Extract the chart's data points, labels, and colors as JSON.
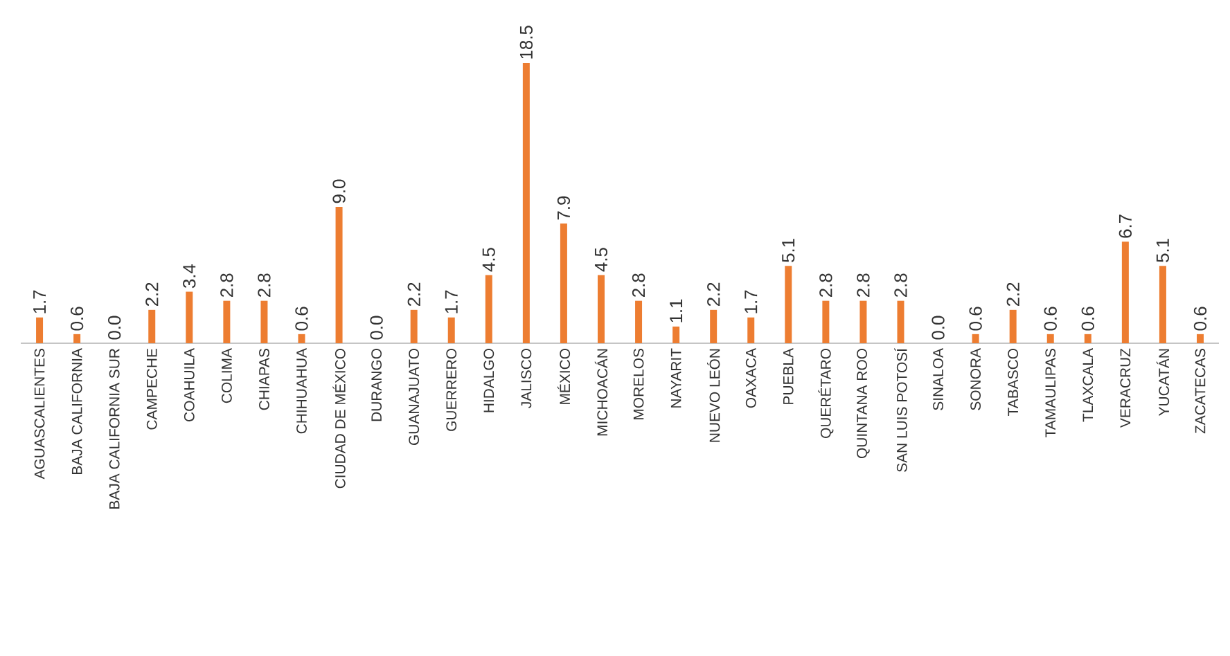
{
  "chart_data": {
    "type": "bar",
    "categories": [
      "AGUASCALIENTES",
      "BAJA CALIFORNIA",
      "BAJA CALIFORNIA SUR",
      "CAMPECHE",
      "COAHUILA",
      "COLIMA",
      "CHIAPAS",
      "CHIHUAHUA",
      "CIUDAD DE MÉXICO",
      "DURANGO",
      "GUANAJUATO",
      "GUERRERO",
      "HIDALGO",
      "JALISCO",
      "MÉXICO",
      "MICHOACÁN",
      "MORELOS",
      "NAYARIT",
      "NUEVO LEÓN",
      "OAXACA",
      "PUEBLA",
      "QUERÉTARO",
      "QUINTANA ROO",
      "SAN LUIS POTOSÍ",
      "SINALOA",
      "SONORA",
      "TABASCO",
      "TAMAULIPAS",
      "TLAXCALA",
      "VERACRUZ",
      "YUCATÁN",
      "ZACATECAS"
    ],
    "values": [
      1.7,
      0.6,
      0.0,
      2.2,
      3.4,
      2.8,
      2.8,
      0.6,
      9.0,
      0.0,
      2.2,
      1.7,
      4.5,
      18.5,
      7.9,
      4.5,
      2.8,
      1.1,
      2.2,
      1.7,
      5.1,
      2.8,
      2.8,
      2.8,
      0.0,
      0.6,
      2.2,
      0.6,
      0.6,
      6.7,
      5.1,
      0.6
    ],
    "value_labels": [
      "1.7",
      "0.6",
      "0.0",
      "2.2",
      "3.4",
      "2.8",
      "2.8",
      "0.6",
      "9.0",
      "0.0",
      "2.2",
      "1.7",
      "4.5",
      "18.5",
      "7.9",
      "4.5",
      "2.8",
      "1.1",
      "2.2",
      "1.7",
      "5.1",
      "2.8",
      "2.8",
      "2.8",
      "0.0",
      "0.6",
      "2.2",
      "0.6",
      "0.6",
      "6.7",
      "5.1",
      "0.6"
    ],
    "color": "#ed7d31"
  }
}
